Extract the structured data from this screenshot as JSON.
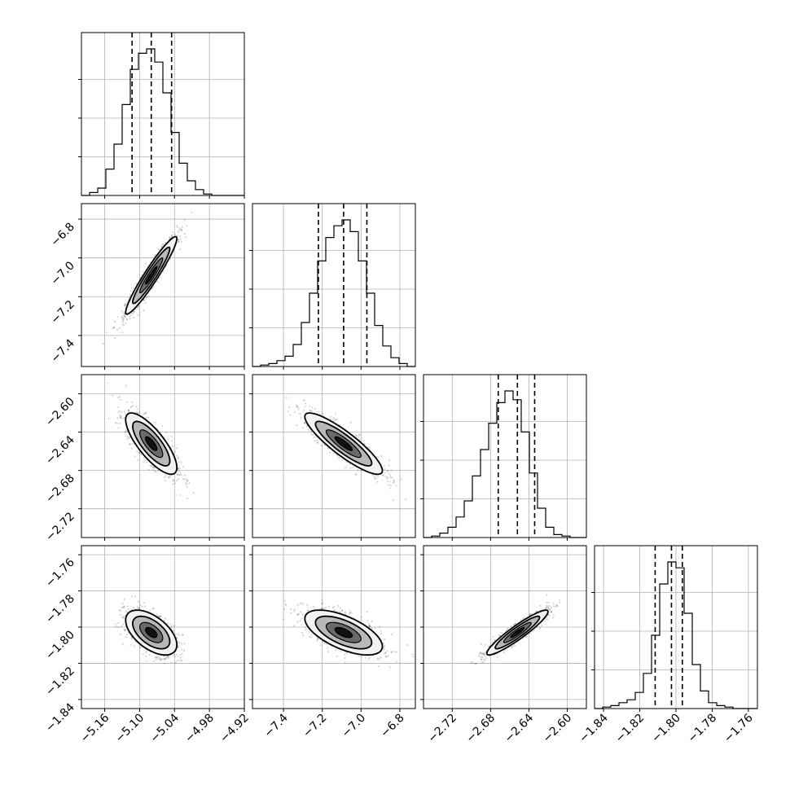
{
  "chart_data": {
    "type": "corner",
    "n_params": 4,
    "grid": true,
    "colors": {
      "line": "#000000",
      "grid": "#b0b0b0",
      "points": "#000000"
    },
    "tick_labels": {
      "x": [
        [
          "−5.16",
          "−5.10",
          "−5.04",
          "−4.98",
          "−4.92"
        ],
        [
          "−7.4",
          "−7.2",
          "−7.0",
          "−6.8"
        ],
        [
          "−2.72",
          "−2.68",
          "−2.64",
          "−2.60"
        ],
        [
          "−1.84",
          "−1.82",
          "−1.80",
          "−1.78",
          "−1.76"
        ]
      ],
      "y": [
        null,
        [
          "−6.8",
          "−7.0",
          "−7.2",
          "−7.4"
        ],
        [
          "−2.60",
          "−2.64",
          "−2.68",
          "−2.72"
        ],
        [
          "−1.76",
          "−1.78",
          "−1.80",
          "−1.82",
          "−1.84"
        ]
      ]
    },
    "params": [
      {
        "xlim": [
          -5.2,
          -4.92
        ],
        "xticks": [
          -5.16,
          -5.1,
          -5.04,
          -4.98,
          -4.92
        ],
        "quantiles": [
          -5.113,
          -5.08,
          -5.045
        ],
        "hist": [
          0,
          0.02,
          0.05,
          0.18,
          0.35,
          0.62,
          0.86,
          0.97,
          1.0,
          0.91,
          0.7,
          0.43,
          0.22,
          0.1,
          0.04,
          0.01,
          0.0,
          0,
          0,
          0
        ]
      },
      {
        "xlim": [
          -7.56,
          -6.72
        ],
        "xticks": [
          -7.4,
          -7.2,
          -7.0,
          -6.8
        ],
        "quantiles": [
          -7.22,
          -7.09,
          -6.97
        ],
        "hist": [
          0,
          0.01,
          0.02,
          0.04,
          0.07,
          0.15,
          0.3,
          0.5,
          0.72,
          0.88,
          0.96,
          1.0,
          0.92,
          0.72,
          0.5,
          0.28,
          0.14,
          0.06,
          0.02,
          0.0
        ]
      },
      {
        "xlim": [
          -2.75,
          -2.58
        ],
        "xticks": [
          -2.72,
          -2.68,
          -2.64,
          -2.6
        ],
        "quantiles": [
          -2.672,
          -2.652,
          -2.634
        ],
        "hist": [
          0,
          0.01,
          0.03,
          0.07,
          0.14,
          0.25,
          0.42,
          0.6,
          0.78,
          0.92,
          1.0,
          0.94,
          0.72,
          0.44,
          0.2,
          0.07,
          0.02,
          0.01,
          0,
          0
        ]
      },
      {
        "xlim": [
          -1.845,
          -1.755
        ],
        "xticks": [
          -1.84,
          -1.82,
          -1.8,
          -1.78,
          -1.76
        ],
        "quantiles": [
          -1.8115,
          -1.8025,
          -1.7965
        ],
        "hist": [
          0,
          0.01,
          0.02,
          0.04,
          0.06,
          0.11,
          0.24,
          0.5,
          0.85,
          1.0,
          0.96,
          0.65,
          0.3,
          0.12,
          0.04,
          0.02,
          0.01,
          0,
          0,
          0
        ]
      }
    ],
    "pairs": [
      {
        "row": 1,
        "col": 0,
        "ylim": [
          -7.56,
          -6.72
        ],
        "yticks": [
          -6.8,
          -7.0,
          -7.2,
          -7.4
        ],
        "mean": [
          -5.08,
          -7.09
        ],
        "sd": [
          0.022,
          0.1
        ],
        "rho": 0.95
      },
      {
        "row": 2,
        "col": 0,
        "ylim": [
          -2.75,
          -2.58
        ],
        "yticks": [
          -2.6,
          -2.64,
          -2.68,
          -2.72
        ],
        "mean": [
          -5.08,
          -2.652
        ],
        "sd": [
          0.022,
          0.016
        ],
        "rho": -0.78
      },
      {
        "row": 2,
        "col": 1,
        "ylim": [
          -2.75,
          -2.58
        ],
        "yticks": [
          -2.6,
          -2.64,
          -2.68,
          -2.72
        ],
        "mean": [
          -7.09,
          -2.652
        ],
        "sd": [
          0.1,
          0.016
        ],
        "rho": -0.88
      },
      {
        "row": 3,
        "col": 0,
        "ylim": [
          -1.845,
          -1.755
        ],
        "yticks": [
          -1.76,
          -1.78,
          -1.8,
          -1.82,
          -1.84
        ],
        "mean": [
          -5.08,
          -1.803
        ],
        "sd": [
          0.022,
          0.0062
        ],
        "rho": -0.55
      },
      {
        "row": 3,
        "col": 1,
        "ylim": [
          -1.845,
          -1.755
        ],
        "yticks": [
          -1.76,
          -1.78,
          -1.8,
          -1.82,
          -1.84
        ],
        "mean": [
          -7.09,
          -1.803
        ],
        "sd": [
          0.1,
          0.0062
        ],
        "rho": -0.62
      },
      {
        "row": 3,
        "col": 2,
        "ylim": [
          -1.845,
          -1.755
        ],
        "yticks": [
          -1.76,
          -1.78,
          -1.8,
          -1.82,
          -1.84
        ],
        "mean": [
          -2.652,
          -1.803
        ],
        "sd": [
          0.016,
          0.0062
        ],
        "rho": 0.93
      }
    ]
  }
}
